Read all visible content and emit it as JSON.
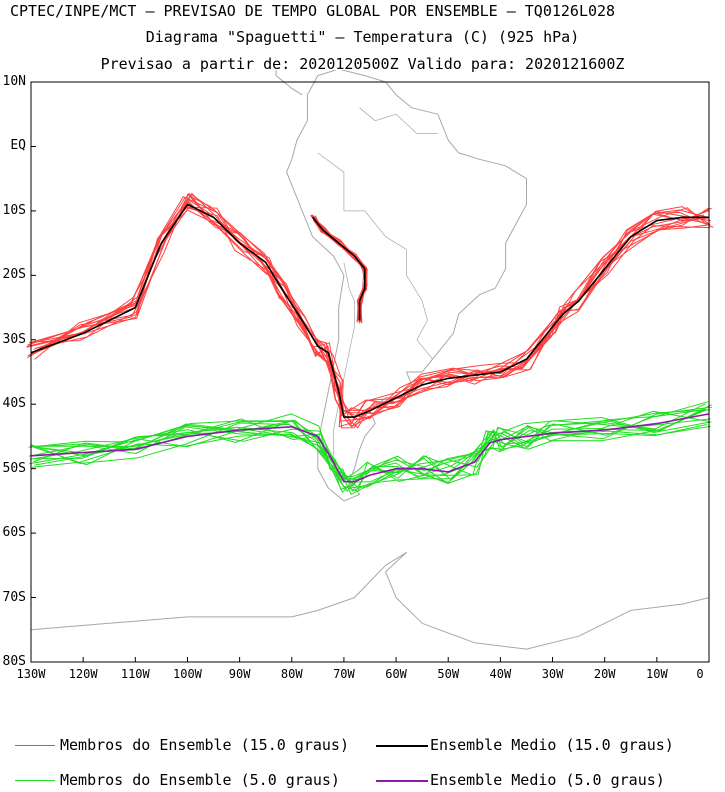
{
  "header": {
    "line1": "CPTEC/INPE/MCT – PREVISAO DE TEMPO GLOBAL POR ENSEMBLE – TQ0126L028",
    "line2": "Diagrama \"Spaguetti\" – Temperatura (C) (925 hPa)",
    "line3": "Previsao a partir de: 2020120500Z  Valido para: 2020121600Z"
  },
  "axes": {
    "lat_labels": [
      "10N",
      "EQ",
      "10S",
      "20S",
      "30S",
      "40S",
      "50S",
      "60S",
      "70S",
      "80S"
    ],
    "lon_labels": [
      "130W",
      "120W",
      "110W",
      "100W",
      "90W",
      "80W",
      "70W",
      "60W",
      "50W",
      "40W",
      "30W",
      "20W",
      "10W",
      "0"
    ],
    "lat_range": [
      -80,
      10
    ],
    "lon_range": [
      -130,
      0
    ]
  },
  "legend": {
    "members_15": "Membros do Ensemble (15.0 graus)",
    "mean_15": "Ensemble Medio (15.0 graus)",
    "members_5": "Membros do Ensemble (5.0 graus)",
    "mean_5": "Ensemble Medio (5.0 graus)"
  },
  "colors": {
    "members_15": "#ff4040",
    "mean_15": "#000000",
    "members_5": "#22dd22",
    "mean_5": "#8a1aa8",
    "coast": "#a8a8a8"
  },
  "chart_data": {
    "type": "contour-spaghetti",
    "isotherm_15_mean": {
      "lon": [
        -130,
        -120,
        -110,
        -105,
        -100,
        -95,
        -90,
        -85,
        -82,
        -78,
        -75,
        -73,
        -71,
        -70,
        -68,
        -65,
        -60,
        -55,
        -50,
        -45,
        -40,
        -35,
        -30,
        -28,
        -25,
        -20,
        -15,
        -10,
        -5,
        0
      ],
      "lat": [
        -32,
        -29,
        -25,
        -15,
        -9,
        -11,
        -15,
        -18,
        -22,
        -27,
        -31,
        -32,
        -38,
        -42,
        -42,
        -41,
        -39,
        -37,
        -36,
        -35.5,
        -35,
        -33,
        -28,
        -26,
        -24,
        -19,
        -14,
        -11.5,
        -11,
        -11
      ]
    },
    "isotherm_15_andes_mean": {
      "lon": [
        -76,
        -74,
        -71,
        -68,
        -66,
        -66,
        -67,
        -67
      ],
      "lat": [
        -11,
        -13,
        -15,
        -17,
        -19,
        -22,
        -24,
        -27
      ]
    },
    "isotherm_5_mean": {
      "lon": [
        -130,
        -120,
        -110,
        -100,
        -90,
        -80,
        -75,
        -72,
        -70,
        -68,
        -65,
        -60,
        -55,
        -50,
        -45,
        -42,
        -40,
        -35,
        -30,
        -20,
        -10,
        0
      ],
      "lat": [
        -48,
        -47.5,
        -47,
        -45,
        -44,
        -43.5,
        -45,
        -49,
        -52,
        -52,
        -51,
        -50,
        -50,
        -50.5,
        -49,
        -46,
        -45.5,
        -45,
        -44.5,
        -44,
        -43,
        -41.5
      ]
    }
  }
}
